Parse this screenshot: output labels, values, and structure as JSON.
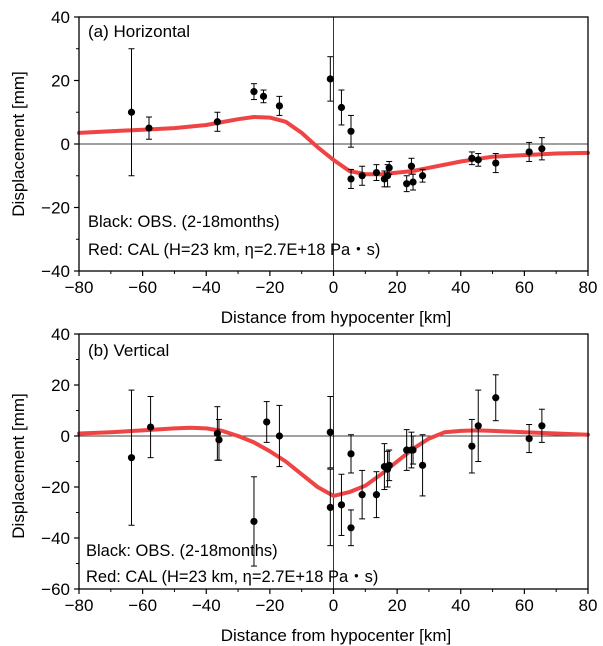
{
  "chart_data": [
    {
      "type": "scatter",
      "panel_label": "(a) Horizontal",
      "xlabel": "Distance from hypocenter [km]",
      "ylabel": "Displacement [mm]",
      "xlim": [
        -80,
        80
      ],
      "ylim": [
        -40,
        40
      ],
      "xticks": [
        -80,
        -60,
        -40,
        -20,
        0,
        20,
        40,
        60,
        80
      ],
      "yticks": [
        -40,
        -20,
        0,
        20,
        40
      ],
      "annotations": [
        "Black: OBS. (2-18months)",
        "Red: CAL (H=23 km, η=2.7E+18 Pa・s)"
      ],
      "grid": false,
      "series": [
        {
          "color": "#000000",
          "points": [
            {
              "x": -63.5,
              "y": 10,
              "err": 20
            },
            {
              "x": -58,
              "y": 5,
              "err": 3.5
            },
            {
              "x": -36.5,
              "y": 7,
              "err": 3
            },
            {
              "x": -25,
              "y": 16.5,
              "err": 2.5
            },
            {
              "x": -22,
              "y": 15,
              "err": 2
            },
            {
              "x": -17,
              "y": 12,
              "err": 3
            },
            {
              "x": -1,
              "y": 20.5,
              "err": 7
            },
            {
              "x": 2.5,
              "y": 11.5,
              "err": 5.5
            },
            {
              "x": 5.5,
              "y": 4,
              "err": 5
            },
            {
              "x": 5.5,
              "y": -11,
              "err": 3
            },
            {
              "x": 9,
              "y": -10,
              "err": 3
            },
            {
              "x": 13.5,
              "y": -9,
              "err": 2.5
            },
            {
              "x": 16,
              "y": -11,
              "err": 2.5
            },
            {
              "x": 17,
              "y": -10,
              "err": 3.5
            },
            {
              "x": 17.5,
              "y": -7.5,
              "err": 2
            },
            {
              "x": 23,
              "y": -12.5,
              "err": 2.5
            },
            {
              "x": 24.5,
              "y": -7,
              "err": 2.5
            },
            {
              "x": 25,
              "y": -12,
              "err": 2.5
            },
            {
              "x": 28,
              "y": -10,
              "err": 2
            },
            {
              "x": 43.5,
              "y": -4.5,
              "err": 2
            },
            {
              "x": 45.5,
              "y": -5,
              "err": 2
            },
            {
              "x": 51,
              "y": -6,
              "err": 3
            },
            {
              "x": 61.5,
              "y": -2.5,
              "err": 3
            },
            {
              "x": 65.5,
              "y": -1.5,
              "err": 3.5
            }
          ]
        },
        {
          "color": "#ee4444",
          "x": [
            -80,
            -70,
            -60,
            -50,
            -40,
            -30,
            -25,
            -20,
            -15,
            -10,
            -5,
            0,
            5,
            10,
            15,
            20,
            25,
            30,
            40,
            50,
            60,
            70,
            80
          ],
          "y": [
            3.5,
            4,
            4.5,
            5,
            6,
            7.8,
            8.5,
            8.3,
            7,
            3.5,
            -1,
            -5,
            -8.5,
            -9.5,
            -9.5,
            -9,
            -8.5,
            -7.5,
            -5.5,
            -4,
            -3.5,
            -3,
            -2.8
          ]
        }
      ]
    },
    {
      "type": "scatter",
      "panel_label": "(b) Vertical",
      "xlabel": "Distance from hypocenter [km]",
      "ylabel": "Displacement [mm]",
      "xlim": [
        -80,
        80
      ],
      "ylim": [
        -60,
        40
      ],
      "xticks": [
        -80,
        -60,
        -40,
        -20,
        0,
        20,
        40,
        60,
        80
      ],
      "yticks": [
        -60,
        -40,
        -20,
        0,
        20,
        40
      ],
      "annotations": [
        "Black: OBS. (2-18months)",
        "Red: CAL (H=23 km, η=2.7E+18 Pa・s)"
      ],
      "grid": false,
      "series": [
        {
          "color": "#000000",
          "points": [
            {
              "x": -63.5,
              "y": -8.5,
              "err": 26.5
            },
            {
              "x": -57.5,
              "y": 3.5,
              "err": 12
            },
            {
              "x": -36.5,
              "y": 1,
              "err": 10.5
            },
            {
              "x": -36,
              "y": -1.5,
              "err": 8
            },
            {
              "x": -25,
              "y": -33.5,
              "err": 17.5
            },
            {
              "x": -21,
              "y": 5.5,
              "err": 8
            },
            {
              "x": -17,
              "y": 0,
              "err": 12
            },
            {
              "x": -1,
              "y": 1.5,
              "err": 14
            },
            {
              "x": -1,
              "y": -28,
              "err": 15
            },
            {
              "x": 2.5,
              "y": -27,
              "err": 12
            },
            {
              "x": 5.5,
              "y": -36,
              "err": 7
            },
            {
              "x": 5.5,
              "y": -7,
              "err": 7.5
            },
            {
              "x": 9,
              "y": -23,
              "err": 9.5
            },
            {
              "x": 13.5,
              "y": -23,
              "err": 9
            },
            {
              "x": 16,
              "y": -12,
              "err": 9
            },
            {
              "x": 17,
              "y": -13,
              "err": 7
            },
            {
              "x": 17.5,
              "y": -11.5,
              "err": 6
            },
            {
              "x": 23,
              "y": -5.5,
              "err": 8
            },
            {
              "x": 24.5,
              "y": -5.5,
              "err": 7
            },
            {
              "x": 25,
              "y": -5.5,
              "err": 5.5
            },
            {
              "x": 28,
              "y": -11.5,
              "err": 12
            },
            {
              "x": 43.5,
              "y": -4,
              "err": 10.5
            },
            {
              "x": 45.5,
              "y": 4,
              "err": 14
            },
            {
              "x": 51,
              "y": 15,
              "err": 9
            },
            {
              "x": 61.5,
              "y": -1,
              "err": 5.5
            },
            {
              "x": 65.5,
              "y": 4,
              "err": 6.5
            }
          ]
        },
        {
          "color": "#ee4444",
          "x": [
            -80,
            -70,
            -60,
            -50,
            -45,
            -40,
            -35,
            -30,
            -25,
            -20,
            -15,
            -10,
            -5,
            0,
            5,
            10,
            15,
            20,
            25,
            30,
            35,
            40,
            45,
            50,
            60,
            70,
            80
          ],
          "y": [
            1,
            1.5,
            2.2,
            3,
            3.2,
            3,
            2,
            0,
            -2.5,
            -6,
            -10,
            -15,
            -20,
            -23.5,
            -22,
            -19.5,
            -15,
            -10,
            -5,
            -1,
            1.5,
            2,
            2.2,
            2,
            1.5,
            1,
            0.5
          ]
        }
      ]
    }
  ]
}
